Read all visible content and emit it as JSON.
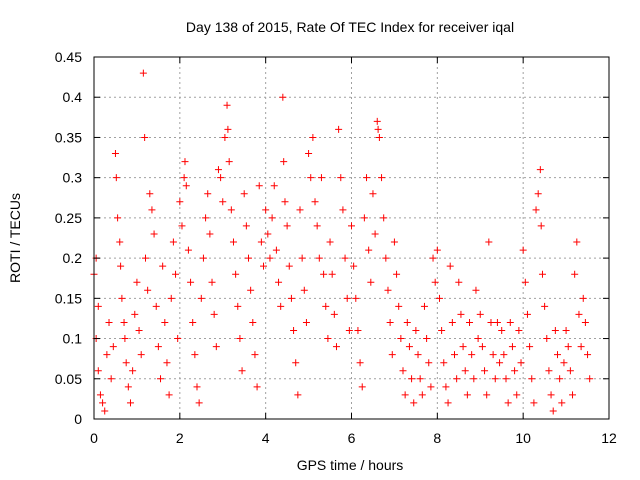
{
  "chart_data": {
    "type": "scatter",
    "title": "Day 138 of 2015, Rate Of TEC Index for receiver iqal",
    "xlabel": "GPS time / hours",
    "ylabel": "ROTI / TECUs",
    "xlim": [
      0,
      12
    ],
    "ylim": [
      0,
      0.45
    ],
    "xticks": [
      0,
      2,
      4,
      6,
      8,
      10,
      12
    ],
    "xtick_labels": [
      "0",
      "2",
      "4",
      "6",
      "8",
      "10",
      "12"
    ],
    "yticks": [
      0,
      0.05,
      0.1,
      0.15,
      0.2,
      0.25,
      0.3,
      0.35,
      0.4,
      0.45
    ],
    "ytick_labels": [
      "0",
      "0.05",
      "0.1",
      "0.15",
      "0.2",
      "0.25",
      "0.3",
      "0.35",
      "0.4",
      "0.45"
    ],
    "grid": true,
    "marker": "+",
    "color": "#ff0000",
    "series": [
      {
        "name": "ROTI",
        "points": [
          [
            0.0,
            0.18
          ],
          [
            0.05,
            0.2
          ],
          [
            0.05,
            0.1
          ],
          [
            0.1,
            0.14
          ],
          [
            0.1,
            0.06
          ],
          [
            0.15,
            0.03
          ],
          [
            0.2,
            0.02
          ],
          [
            0.25,
            0.01
          ],
          [
            0.3,
            0.08
          ],
          [
            0.35,
            0.12
          ],
          [
            0.4,
            0.05
          ],
          [
            0.45,
            0.09
          ],
          [
            0.5,
            0.33
          ],
          [
            0.52,
            0.3
          ],
          [
            0.55,
            0.25
          ],
          [
            0.6,
            0.22
          ],
          [
            0.62,
            0.19
          ],
          [
            0.65,
            0.15
          ],
          [
            0.7,
            0.12
          ],
          [
            0.72,
            0.1
          ],
          [
            0.75,
            0.07
          ],
          [
            0.8,
            0.04
          ],
          [
            0.85,
            0.02
          ],
          [
            0.9,
            0.06
          ],
          [
            0.95,
            0.13
          ],
          [
            1.0,
            0.17
          ],
          [
            1.05,
            0.11
          ],
          [
            1.1,
            0.08
          ],
          [
            1.15,
            0.43
          ],
          [
            1.18,
            0.35
          ],
          [
            1.2,
            0.2
          ],
          [
            1.25,
            0.16
          ],
          [
            1.3,
            0.28
          ],
          [
            1.35,
            0.26
          ],
          [
            1.4,
            0.23
          ],
          [
            1.45,
            0.14
          ],
          [
            1.5,
            0.09
          ],
          [
            1.55,
            0.05
          ],
          [
            1.6,
            0.19
          ],
          [
            1.65,
            0.12
          ],
          [
            1.7,
            0.07
          ],
          [
            1.75,
            0.03
          ],
          [
            1.8,
            0.15
          ],
          [
            1.85,
            0.22
          ],
          [
            1.9,
            0.18
          ],
          [
            1.95,
            0.1
          ],
          [
            2.0,
            0.27
          ],
          [
            2.05,
            0.24
          ],
          [
            2.1,
            0.3
          ],
          [
            2.12,
            0.32
          ],
          [
            2.15,
            0.29
          ],
          [
            2.2,
            0.21
          ],
          [
            2.25,
            0.17
          ],
          [
            2.3,
            0.12
          ],
          [
            2.35,
            0.08
          ],
          [
            2.4,
            0.04
          ],
          [
            2.45,
            0.02
          ],
          [
            2.5,
            0.15
          ],
          [
            2.55,
            0.2
          ],
          [
            2.6,
            0.25
          ],
          [
            2.65,
            0.28
          ],
          [
            2.7,
            0.23
          ],
          [
            2.75,
            0.17
          ],
          [
            2.8,
            0.13
          ],
          [
            2.85,
            0.09
          ],
          [
            2.9,
            0.31
          ],
          [
            2.95,
            0.3
          ],
          [
            3.0,
            0.27
          ],
          [
            3.05,
            0.35
          ],
          [
            3.1,
            0.39
          ],
          [
            3.12,
            0.36
          ],
          [
            3.15,
            0.32
          ],
          [
            3.2,
            0.26
          ],
          [
            3.25,
            0.22
          ],
          [
            3.3,
            0.18
          ],
          [
            3.35,
            0.14
          ],
          [
            3.4,
            0.1
          ],
          [
            3.45,
            0.06
          ],
          [
            3.5,
            0.28
          ],
          [
            3.55,
            0.24
          ],
          [
            3.6,
            0.2
          ],
          [
            3.65,
            0.16
          ],
          [
            3.7,
            0.12
          ],
          [
            3.75,
            0.08
          ],
          [
            3.8,
            0.04
          ],
          [
            3.85,
            0.29
          ],
          [
            3.9,
            0.22
          ],
          [
            3.95,
            0.19
          ],
          [
            4.0,
            0.26
          ],
          [
            4.05,
            0.23
          ],
          [
            4.1,
            0.2
          ],
          [
            4.15,
            0.25
          ],
          [
            4.2,
            0.29
          ],
          [
            4.25,
            0.21
          ],
          [
            4.3,
            0.17
          ],
          [
            4.35,
            0.14
          ],
          [
            4.4,
            0.4
          ],
          [
            4.42,
            0.32
          ],
          [
            4.45,
            0.27
          ],
          [
            4.5,
            0.24
          ],
          [
            4.55,
            0.19
          ],
          [
            4.6,
            0.15
          ],
          [
            4.65,
            0.11
          ],
          [
            4.7,
            0.07
          ],
          [
            4.75,
            0.03
          ],
          [
            4.8,
            0.26
          ],
          [
            4.85,
            0.2
          ],
          [
            4.9,
            0.16
          ],
          [
            4.95,
            0.12
          ],
          [
            5.0,
            0.33
          ],
          [
            5.05,
            0.3
          ],
          [
            5.1,
            0.35
          ],
          [
            5.15,
            0.27
          ],
          [
            5.2,
            0.24
          ],
          [
            5.25,
            0.2
          ],
          [
            5.3,
            0.3
          ],
          [
            5.35,
            0.18
          ],
          [
            5.4,
            0.14
          ],
          [
            5.45,
            0.1
          ],
          [
            5.5,
            0.22
          ],
          [
            5.55,
            0.18
          ],
          [
            5.6,
            0.13
          ],
          [
            5.65,
            0.09
          ],
          [
            5.7,
            0.36
          ],
          [
            5.75,
            0.3
          ],
          [
            5.8,
            0.26
          ],
          [
            5.85,
            0.2
          ],
          [
            5.9,
            0.15
          ],
          [
            5.95,
            0.11
          ],
          [
            6.0,
            0.24
          ],
          [
            6.05,
            0.19
          ],
          [
            6.1,
            0.15
          ],
          [
            6.15,
            0.11
          ],
          [
            6.2,
            0.07
          ],
          [
            6.25,
            0.04
          ],
          [
            6.3,
            0.25
          ],
          [
            6.35,
            0.3
          ],
          [
            6.4,
            0.21
          ],
          [
            6.45,
            0.17
          ],
          [
            6.5,
            0.28
          ],
          [
            6.55,
            0.23
          ],
          [
            6.6,
            0.37
          ],
          [
            6.62,
            0.36
          ],
          [
            6.65,
            0.35
          ],
          [
            6.7,
            0.3
          ],
          [
            6.75,
            0.25
          ],
          [
            6.8,
            0.2
          ],
          [
            6.85,
            0.16
          ],
          [
            6.9,
            0.12
          ],
          [
            6.95,
            0.08
          ],
          [
            7.0,
            0.22
          ],
          [
            7.05,
            0.18
          ],
          [
            7.1,
            0.14
          ],
          [
            7.15,
            0.1
          ],
          [
            7.2,
            0.06
          ],
          [
            7.25,
            0.03
          ],
          [
            7.3,
            0.12
          ],
          [
            7.35,
            0.09
          ],
          [
            7.4,
            0.05
          ],
          [
            7.45,
            0.02
          ],
          [
            7.5,
            0.11
          ],
          [
            7.55,
            0.08
          ],
          [
            7.6,
            0.05
          ],
          [
            7.65,
            0.03
          ],
          [
            7.7,
            0.14
          ],
          [
            7.75,
            0.1
          ],
          [
            7.8,
            0.07
          ],
          [
            7.85,
            0.04
          ],
          [
            7.9,
            0.2
          ],
          [
            7.95,
            0.17
          ],
          [
            8.0,
            0.21
          ],
          [
            8.05,
            0.15
          ],
          [
            8.1,
            0.11
          ],
          [
            8.15,
            0.07
          ],
          [
            8.2,
            0.04
          ],
          [
            8.25,
            0.02
          ],
          [
            8.3,
            0.19
          ],
          [
            8.35,
            0.12
          ],
          [
            8.4,
            0.08
          ],
          [
            8.45,
            0.05
          ],
          [
            8.5,
            0.17
          ],
          [
            8.55,
            0.13
          ],
          [
            8.6,
            0.09
          ],
          [
            8.65,
            0.06
          ],
          [
            8.7,
            0.03
          ],
          [
            8.75,
            0.12
          ],
          [
            8.8,
            0.08
          ],
          [
            8.85,
            0.05
          ],
          [
            8.9,
            0.16
          ],
          [
            8.95,
            0.1
          ],
          [
            9.0,
            0.13
          ],
          [
            9.05,
            0.09
          ],
          [
            9.1,
            0.06
          ],
          [
            9.15,
            0.03
          ],
          [
            9.2,
            0.22
          ],
          [
            9.25,
            0.12
          ],
          [
            9.3,
            0.08
          ],
          [
            9.35,
            0.05
          ],
          [
            9.4,
            0.12
          ],
          [
            9.45,
            0.07
          ],
          [
            9.5,
            0.11
          ],
          [
            9.55,
            0.08
          ],
          [
            9.6,
            0.05
          ],
          [
            9.65,
            0.02
          ],
          [
            9.7,
            0.12
          ],
          [
            9.75,
            0.09
          ],
          [
            9.8,
            0.06
          ],
          [
            9.85,
            0.03
          ],
          [
            9.9,
            0.11
          ],
          [
            9.95,
            0.07
          ],
          [
            10.0,
            0.21
          ],
          [
            10.05,
            0.17
          ],
          [
            10.1,
            0.13
          ],
          [
            10.15,
            0.09
          ],
          [
            10.2,
            0.05
          ],
          [
            10.25,
            0.02
          ],
          [
            10.3,
            0.26
          ],
          [
            10.35,
            0.28
          ],
          [
            10.4,
            0.31
          ],
          [
            10.42,
            0.24
          ],
          [
            10.45,
            0.18
          ],
          [
            10.5,
            0.14
          ],
          [
            10.55,
            0.1
          ],
          [
            10.6,
            0.06
          ],
          [
            10.65,
            0.03
          ],
          [
            10.7,
            0.01
          ],
          [
            10.75,
            0.11
          ],
          [
            10.8,
            0.08
          ],
          [
            10.85,
            0.05
          ],
          [
            10.9,
            0.02
          ],
          [
            10.95,
            0.07
          ],
          [
            11.0,
            0.11
          ],
          [
            11.05,
            0.09
          ],
          [
            11.1,
            0.06
          ],
          [
            11.15,
            0.03
          ],
          [
            11.2,
            0.18
          ],
          [
            11.25,
            0.22
          ],
          [
            11.3,
            0.13
          ],
          [
            11.35,
            0.09
          ],
          [
            11.4,
            0.15
          ],
          [
            11.45,
            0.12
          ],
          [
            11.5,
            0.08
          ],
          [
            11.55,
            0.05
          ]
        ]
      }
    ]
  }
}
